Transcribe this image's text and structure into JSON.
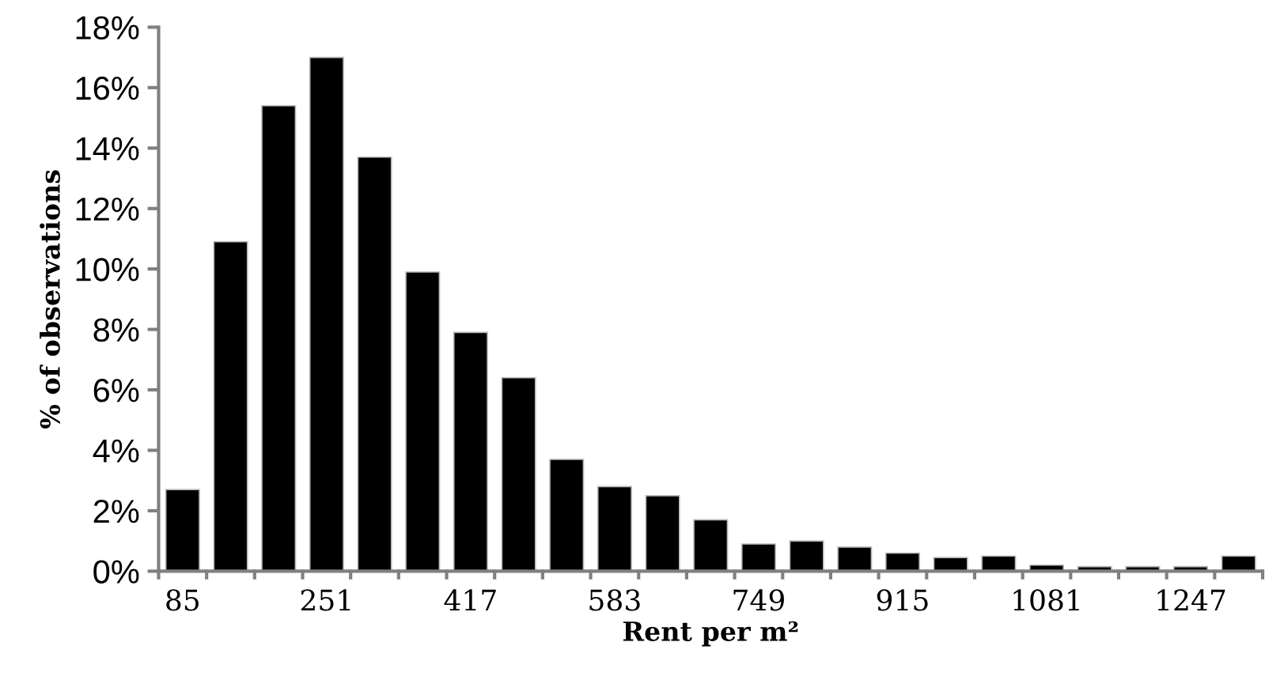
{
  "chart_data": {
    "type": "bar",
    "xlabel": "Rent per m²",
    "ylabel": "% of observations",
    "categories": [
      "85",
      null,
      null,
      "251",
      null,
      null,
      "417",
      null,
      null,
      "583",
      null,
      null,
      "749",
      null,
      null,
      "915",
      null,
      null,
      "1081",
      null,
      null,
      "1247",
      null
    ],
    "values": [
      2.7,
      10.9,
      15.4,
      17.0,
      13.7,
      9.9,
      7.9,
      6.4,
      3.7,
      2.8,
      2.5,
      1.7,
      0.9,
      1.0,
      0.8,
      0.6,
      0.45,
      0.5,
      0.2,
      0.15,
      0.15,
      0.15,
      0.5
    ],
    "color": "#000000",
    "ylim": [
      0,
      18
    ],
    "yticks": [
      {
        "value": 0,
        "label": "0%"
      },
      {
        "value": 2,
        "label": "2%"
      },
      {
        "value": 4,
        "label": "4%"
      },
      {
        "value": 6,
        "label": "6%"
      },
      {
        "value": 8,
        "label": "8%"
      },
      {
        "value": 10,
        "label": "10%"
      },
      {
        "value": 12,
        "label": "12%"
      },
      {
        "value": 14,
        "label": "14%"
      },
      {
        "value": 16,
        "label": "16%"
      },
      {
        "value": 18,
        "label": "18%"
      }
    ],
    "grid": false,
    "legend": false
  }
}
